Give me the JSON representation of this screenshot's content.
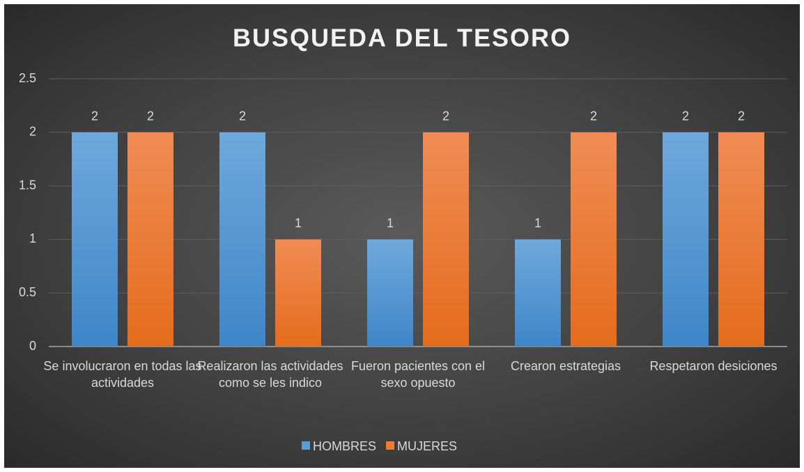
{
  "chart_data": {
    "type": "bar",
    "title": "BUSQUEDA DEL TESORO",
    "categories": [
      "Se involucraron en todas las actividades",
      "Realizaron las actividades como se les indico",
      "Fueron pacientes con el sexo opuesto",
      "Crearon estrategias",
      "Respetaron desiciones"
    ],
    "series": [
      {
        "name": "HOMBRES",
        "color": "#5b9bd5",
        "values": [
          2,
          2,
          1,
          1,
          2
        ]
      },
      {
        "name": "MUJERES",
        "color": "#ed7d31",
        "values": [
          2,
          1,
          2,
          2,
          2
        ]
      }
    ],
    "ylim": [
      0,
      2.5
    ],
    "yticks": [
      0,
      0.5,
      1,
      1.5,
      2,
      2.5
    ],
    "grid": true,
    "legend": "bottom"
  }
}
